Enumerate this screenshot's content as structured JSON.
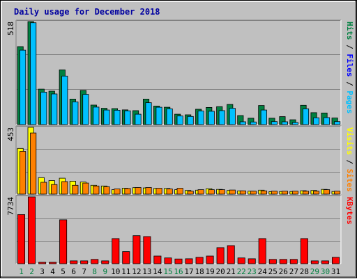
{
  "chart_data": {
    "type": "bar",
    "title": "Daily usage for December 2018",
    "categories": [
      "1",
      "2",
      "3",
      "4",
      "5",
      "6",
      "7",
      "8",
      "9",
      "10",
      "11",
      "12",
      "13",
      "14",
      "15",
      "16",
      "17",
      "18",
      "19",
      "20",
      "21",
      "22",
      "23",
      "24",
      "25",
      "26",
      "27",
      "28",
      "29",
      "30",
      "31"
    ],
    "weekend_days": [
      "1",
      "2",
      "8",
      "9",
      "15",
      "16",
      "22",
      "23",
      "29",
      "30"
    ],
    "colors": {
      "hits": "#008040",
      "files": "#00c0ff",
      "pages": "#00e0ff",
      "visits": "#ffff00",
      "sites": "#ff8000",
      "kbytes": "#ff0000",
      "weekday_label": "#000000",
      "weekend_label": "#008040"
    },
    "panels": [
      {
        "id": "hits",
        "ymax_label": "518",
        "ylim": [
          0,
          518
        ],
        "legend": [
          {
            "text": "Pages",
            "color": "#00c0ff"
          },
          {
            "text": "Files",
            "color": "#0000ff"
          },
          {
            "text": "Hits",
            "color": "#008040"
          }
        ],
        "series": [
          {
            "name": "Hits",
            "color": "#008040",
            "values": [
              392,
              518,
              178,
              168,
              275,
              128,
              172,
              98,
              82,
              80,
              74,
              70,
              128,
              93,
              87,
              52,
              49,
              77,
              86,
              90,
              101,
              45,
              32,
              96,
              32,
              40,
              24,
              97,
              60,
              58,
              33
            ]
          },
          {
            "name": "Files",
            "color": "#00c0ff",
            "values": [
              374,
              512,
              163,
              154,
              244,
              114,
              152,
              88,
              73,
              72,
              69,
              52,
              110,
              87,
              79,
              43,
              41,
              68,
              67,
              70,
              82,
              14,
              13,
              73,
              15,
              14,
              10,
              79,
              34,
              35,
              15
            ]
          }
        ]
      },
      {
        "id": "visits",
        "ymax_label": "453",
        "ylim": [
          0,
          453
        ],
        "legend": [
          {
            "text": "Sites",
            "color": "#ff8000"
          },
          {
            "text": "Visits",
            "color": "#ffff00"
          }
        ],
        "series": [
          {
            "name": "Visits",
            "color": "#ffff00",
            "values": [
              310,
              453,
              112,
              92,
              108,
              88,
              82,
              60,
              55,
              30,
              40,
              44,
              42,
              38,
              38,
              30,
              25,
              27,
              37,
              32,
              25,
              22,
              20,
              27,
              17,
              18,
              18,
              23,
              25,
              32,
              18
            ]
          },
          {
            "name": "Sites",
            "color": "#ff8000",
            "values": [
              290,
              415,
              80,
              65,
              85,
              60,
              75,
              55,
              50,
              35,
              38,
              45,
              45,
              40,
              35,
              40,
              20,
              30,
              30,
              30,
              28,
              22,
              20,
              22,
              20,
              20,
              20,
              20,
              20,
              30,
              20
            ]
          }
        ]
      },
      {
        "id": "kbytes",
        "ymax_label": "7734",
        "ylim": [
          0,
          7734
        ],
        "legend": [
          {
            "text": "KBytes",
            "color": "#ff0000"
          }
        ],
        "series": [
          {
            "name": "KBytes",
            "color": "#ff0000",
            "values": [
              5688,
              7734,
              165,
              165,
              5087,
              330,
              330,
              496,
              330,
              2910,
              1401,
              3250,
              3144,
              887,
              665,
              551,
              576,
              744,
              885,
              1858,
              2092,
              665,
              576,
              2910,
              496,
              496,
              496,
              2910,
              330,
              330,
              744
            ]
          }
        ]
      }
    ]
  }
}
